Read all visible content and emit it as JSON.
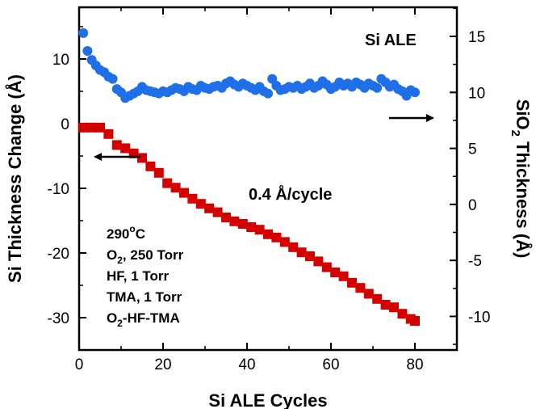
{
  "chart_data": {
    "type": "scatter",
    "title": "Si ALE",
    "xlabel": "Si ALE Cycles",
    "ylabel_left": "Si Thickness Change (Å)",
    "ylabel_right": {
      "pre": "SiO",
      "sub": "2",
      "post": " Thickness (Å)"
    },
    "xlim": [
      0,
      90
    ],
    "ylim_left": [
      -35,
      18
    ],
    "ylim_right": [
      -13,
      17.6
    ],
    "x_ticks": [
      0,
      20,
      40,
      60,
      80
    ],
    "y_left_ticks": [
      10,
      0,
      -10,
      -20,
      -30
    ],
    "y_right_ticks": [
      15,
      10,
      5,
      0,
      -5,
      -10
    ],
    "grid": false,
    "series": [
      {
        "axis": "left",
        "marker": "square",
        "color": "#d40000",
        "x": [
          1,
          3,
          5,
          7,
          9,
          11,
          13,
          15,
          17,
          19,
          21,
          23,
          25,
          27,
          29,
          31,
          33,
          35,
          37,
          39,
          41,
          43,
          45,
          47,
          49,
          51,
          53,
          55,
          57,
          59,
          61,
          63,
          65,
          67,
          69,
          71,
          73,
          75,
          77,
          79,
          80
        ],
        "values": [
          -0.6,
          -0.6,
          -0.6,
          -1.6,
          -3.3,
          -3.8,
          -4.6,
          -5.3,
          -6.6,
          -7.6,
          -9.2,
          -9.9,
          -10.7,
          -11.6,
          -12.4,
          -13.1,
          -13.7,
          -14.5,
          -15.1,
          -15.5,
          -16.0,
          -16.4,
          -17.1,
          -17.6,
          -18.3,
          -19.1,
          -19.9,
          -20.5,
          -21.3,
          -22.2,
          -23.0,
          -23.6,
          -24.6,
          -25.4,
          -26.3,
          -27.1,
          -28.0,
          -28.4,
          -29.4,
          -30.2,
          -30.5
        ]
      },
      {
        "axis": "right",
        "marker": "circle",
        "color": "#1f6fe8",
        "x": [
          1,
          2,
          3,
          4,
          5,
          6,
          7,
          8,
          9,
          10,
          11,
          12,
          13,
          14,
          15,
          16,
          17,
          18,
          19,
          20,
          21,
          22,
          23,
          24,
          25,
          26,
          27,
          28,
          29,
          30,
          31,
          32,
          33,
          34,
          35,
          36,
          37,
          38,
          39,
          40,
          41,
          42,
          43,
          44,
          45,
          46,
          47,
          48,
          49,
          50,
          51,
          52,
          53,
          54,
          55,
          56,
          57,
          58,
          59,
          60,
          61,
          62,
          63,
          64,
          65,
          66,
          67,
          68,
          69,
          70,
          71,
          72,
          73,
          74,
          75,
          76,
          77,
          78,
          79,
          80
        ],
        "values": [
          15.3,
          13.7,
          12.9,
          12.4,
          12.0,
          11.8,
          11.4,
          11.2,
          10.3,
          10.0,
          9.5,
          9.7,
          9.9,
          10.1,
          10.5,
          10.2,
          10.1,
          10.0,
          9.9,
          10.1,
          10.0,
          10.2,
          10.4,
          10.3,
          10.1,
          10.5,
          10.3,
          10.2,
          10.6,
          10.4,
          10.3,
          10.5,
          10.6,
          10.4,
          10.8,
          11.0,
          10.7,
          10.5,
          10.8,
          10.6,
          10.4,
          10.2,
          10.5,
          10.1,
          9.9,
          11.2,
          10.6,
          10.2,
          10.3,
          10.5,
          10.4,
          10.6,
          10.3,
          10.5,
          10.8,
          10.4,
          10.6,
          11.0,
          10.7,
          10.3,
          10.5,
          10.9,
          10.6,
          10.8,
          10.5,
          10.9,
          10.7,
          10.4,
          10.8,
          10.6,
          10.4,
          11.2,
          10.9,
          10.5,
          10.7,
          10.3,
          10.1,
          9.7,
          10.2,
          10.0
        ]
      }
    ],
    "annotations": {
      "rate": "0.4 Å/cycle",
      "conditions": [
        {
          "text": "290",
          "sup": "o",
          "tail": "C"
        },
        {
          "text": "O",
          "sub": "2",
          "tail": ", 250 Torr"
        },
        {
          "text": "HF, 1 Torr"
        },
        {
          "text": "TMA, 1 Torr"
        },
        {
          "text": "O",
          "sub": "2",
          "tail": "-HF-TMA"
        }
      ],
      "arrows": [
        {
          "name": "left-axis-arrow",
          "direction": "left"
        },
        {
          "name": "right-axis-arrow",
          "direction": "right"
        }
      ]
    }
  }
}
